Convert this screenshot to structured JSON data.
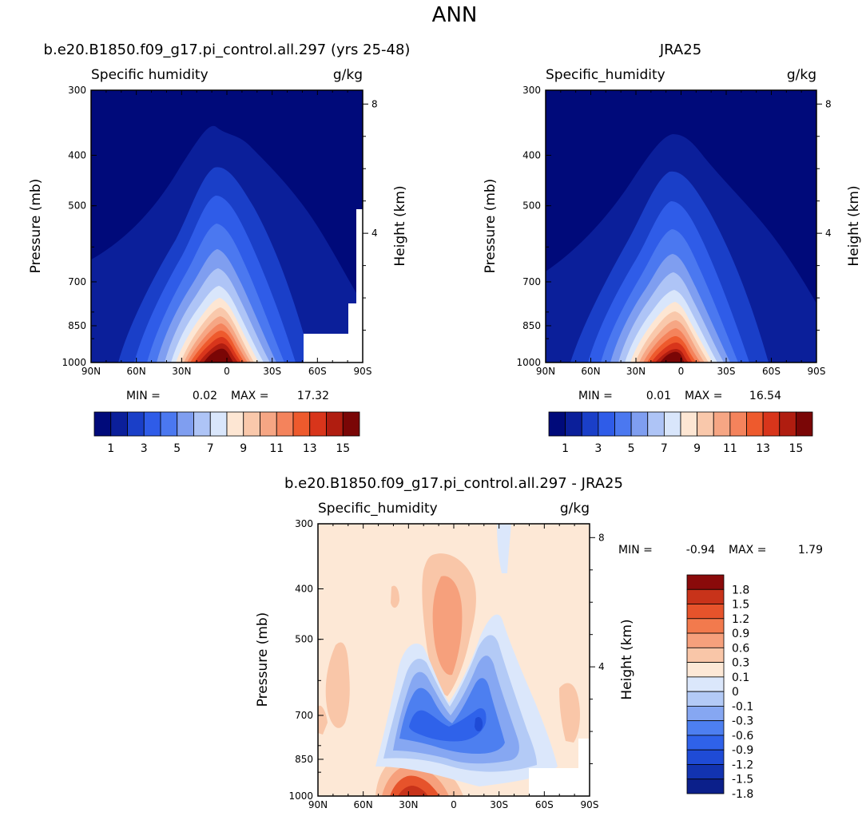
{
  "figure": {
    "title": "ANN"
  },
  "colors": {
    "full_levels": [
      "#000a7a",
      "#0b1f9a",
      "#1a3fc8",
      "#2f5ce8",
      "#4b78f0",
      "#7f9ef0",
      "#aec4f6",
      "#d9e6fb",
      "#fde6d3",
      "#f9c8ab",
      "#f6a684",
      "#f4835c",
      "#ee5a2d",
      "#d8351b",
      "#b01d10",
      "#7a0606"
    ],
    "diff_levels": [
      "#0b1f8a",
      "#1233b0",
      "#1f4bd6",
      "#2f62ea",
      "#4d7ff0",
      "#86a7f2",
      "#b3caf6",
      "#dbe7fb",
      "#fde8d6",
      "#f9c6a8",
      "#f6a07c",
      "#f27a4d",
      "#e6532b",
      "#c8331a",
      "#8a0a0a"
    ]
  },
  "chart_data": [
    {
      "type": "heatmap",
      "title": "b.e20.B1850.f09_g17.pi_control.all.297 (yrs 25-48)",
      "variable_label": "Specific humidity",
      "units": "g/kg",
      "xlabel": "",
      "ylabel": "Pressure (mb)",
      "y2label": "Height (km)",
      "x_ticks": [
        "90N",
        "60N",
        "30N",
        "0",
        "30S",
        "60S",
        "90S"
      ],
      "y_ticks": [
        "300",
        "400",
        "500",
        "700",
        "850",
        "1000"
      ],
      "y2_ticks": [
        "8",
        "4"
      ],
      "min_label": "MIN =",
      "min_value": "0.02",
      "max_label": "MAX =",
      "max_value": "17.32",
      "colorbar_labels": [
        "1",
        "3",
        "5",
        "7",
        "9",
        "11",
        "13",
        "15"
      ],
      "peak": {
        "lat": 0,
        "plev": 1000,
        "value": 17.32
      }
    },
    {
      "type": "heatmap",
      "title": "JRA25",
      "variable_label": "Specific_humidity",
      "units": "g/kg",
      "xlabel": "",
      "ylabel": "Pressure (mb)",
      "y2label": "Height (km)",
      "x_ticks": [
        "90N",
        "60N",
        "30N",
        "0",
        "30S",
        "60S",
        "90S"
      ],
      "y_ticks": [
        "300",
        "400",
        "500",
        "700",
        "850",
        "1000"
      ],
      "y2_ticks": [
        "8",
        "4"
      ],
      "min_label": "MIN =",
      "min_value": "0.01",
      "max_label": "MAX =",
      "max_value": "16.54",
      "colorbar_labels": [
        "1",
        "3",
        "5",
        "7",
        "9",
        "11",
        "13",
        "15"
      ],
      "peak": {
        "lat": 0,
        "plev": 1000,
        "value": 16.54
      }
    },
    {
      "type": "heatmap",
      "title": "b.e20.B1850.f09_g17.pi_control.all.297 - JRA25",
      "variable_label": "Specific_humidity",
      "units": "g/kg",
      "xlabel": "",
      "ylabel": "Pressure (mb)",
      "y2label": "Height (km)",
      "x_ticks": [
        "90N",
        "60N",
        "30N",
        "0",
        "30S",
        "60S",
        "90S"
      ],
      "y_ticks": [
        "300",
        "400",
        "500",
        "700",
        "850",
        "1000"
      ],
      "y2_ticks": [
        "8",
        "4"
      ],
      "min_label": "MIN =",
      "min_value": "-0.94",
      "max_label": "MAX =",
      "max_value": "1.79",
      "colorbar_labels": [
        "1.8",
        "1.5",
        "1.2",
        "0.9",
        "0.6",
        "0.3",
        "0.1",
        "0",
        "-0.1",
        "-0.3",
        "-0.6",
        "-0.9",
        "-1.2",
        "-1.5",
        "-1.8"
      ]
    }
  ]
}
